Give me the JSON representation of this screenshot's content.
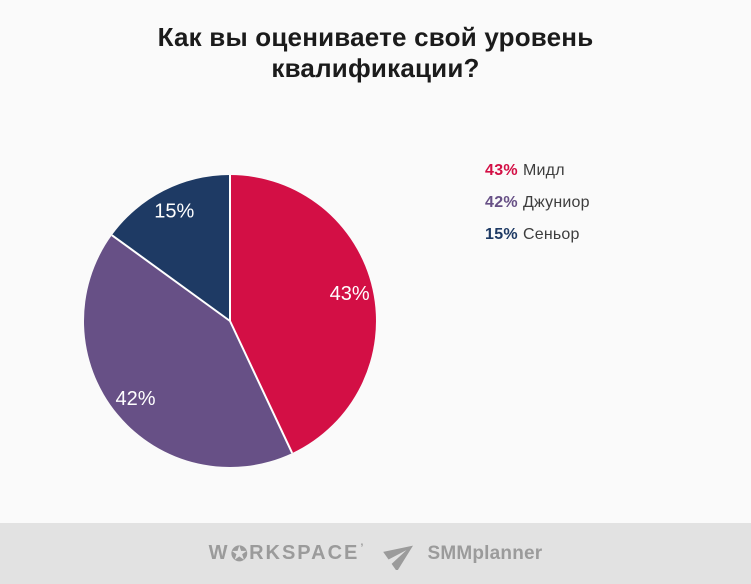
{
  "chart_data": {
    "type": "pie",
    "title": "Как вы оцениваете свой уровень квалификации?",
    "categories": [
      "Мидл",
      "Джуниор",
      "Сеньор"
    ],
    "values": [
      43,
      42,
      15
    ],
    "labels": [
      "43%",
      "42%",
      "15%"
    ],
    "colors": [
      "#d30f45",
      "#675086",
      "#1e3a64"
    ],
    "start_angle_deg": 0,
    "direction": "clockwise",
    "slice_label_color": "#ffffff",
    "separator_color": "#ffffff",
    "label_radius_fraction": 0.84,
    "legend_position": "right"
  },
  "legend": {
    "items": [
      {
        "pct": "43%",
        "label": "Мидл"
      },
      {
        "pct": "42%",
        "label": "Джуниор"
      },
      {
        "pct": "15%",
        "label": "Сеньор"
      }
    ]
  },
  "footer": {
    "workspace": {
      "prefix": "W",
      "star_icon": "✪",
      "suffix": "RKSPACE",
      "mark": "’"
    },
    "smmplanner": {
      "icon": "paper-plane-icon",
      "label": "SMMplanner"
    }
  },
  "theme": {
    "background": "#fafafa",
    "footer_background": "#e2e2e2",
    "title_color": "#1b1b1b",
    "logo_color": "#9b9b9b",
    "legend_text_color": "#3d3d3d"
  }
}
